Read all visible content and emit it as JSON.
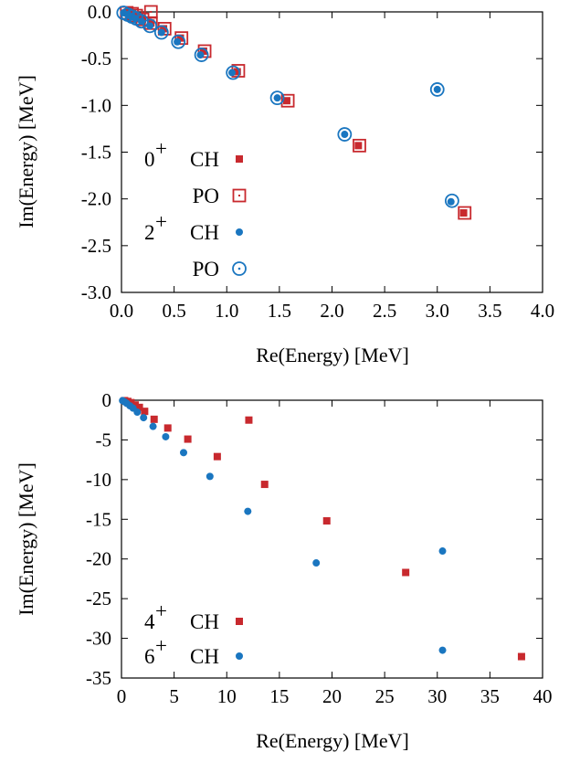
{
  "charts": [
    {
      "type": "scatter",
      "xlabel": "Re(Energy) [MeV]",
      "ylabel": "Im(Energy) [MeV]",
      "xlim": [
        0.0,
        4.0
      ],
      "ylim": [
        -3.0,
        0.0
      ],
      "xticks": [
        "0.0",
        "0.5",
        "1.0",
        "1.5",
        "2.0",
        "2.5",
        "3.0",
        "3.5",
        "4.0"
      ],
      "xtick_values": [
        0.0,
        0.5,
        1.0,
        1.5,
        2.0,
        2.5,
        3.0,
        3.5,
        4.0
      ],
      "yticks": [
        "0.0",
        "-0.5",
        "-1.0",
        "-1.5",
        "-2.0",
        "-2.5",
        "-3.0"
      ],
      "ytick_values": [
        0.0,
        -0.5,
        -1.0,
        -1.5,
        -2.0,
        -2.5,
        -3.0
      ],
      "legend_position": "bottom-left",
      "series": [
        {
          "legend_prefix": "0",
          "legend_sup": "+",
          "legend_label": "CH",
          "marker": "filled-square",
          "color": "#c8292e",
          "points": [
            [
              0.06,
              -0.01
            ],
            [
              0.1,
              -0.02
            ],
            [
              0.15,
              -0.05
            ],
            [
              0.2,
              -0.08
            ],
            [
              0.28,
              -0.12
            ],
            [
              0.4,
              -0.18
            ],
            [
              0.56,
              -0.28
            ],
            [
              0.78,
              -0.42
            ],
            [
              1.1,
              -0.64
            ],
            [
              1.57,
              -0.95
            ],
            [
              2.25,
              -1.43
            ],
            [
              3.25,
              -2.15
            ]
          ]
        },
        {
          "legend_prefix": "",
          "legend_sup": "",
          "legend_label": "PO",
          "marker": "open-square-dot",
          "color": "#c8292e",
          "points": [
            [
              0.05,
              -0.01
            ],
            [
              0.1,
              -0.02
            ],
            [
              0.14,
              -0.04
            ],
            [
              0.28,
              0.0
            ],
            [
              0.2,
              -0.08
            ],
            [
              0.28,
              -0.12
            ],
            [
              0.41,
              -0.18
            ],
            [
              0.57,
              -0.28
            ],
            [
              0.79,
              -0.42
            ],
            [
              1.11,
              -0.63
            ],
            [
              1.58,
              -0.95
            ],
            [
              2.26,
              -1.43
            ],
            [
              3.26,
              -2.15
            ]
          ]
        },
        {
          "legend_prefix": "2",
          "legend_sup": "+",
          "legend_label": "CH",
          "marker": "filled-circle",
          "color": "#1a76c0",
          "points": [
            [
              0.02,
              -0.01
            ],
            [
              0.06,
              -0.03
            ],
            [
              0.09,
              -0.05
            ],
            [
              0.13,
              -0.07
            ],
            [
              0.19,
              -0.1
            ],
            [
              0.27,
              -0.15
            ],
            [
              0.38,
              -0.22
            ],
            [
              0.53,
              -0.32
            ],
            [
              0.75,
              -0.46
            ],
            [
              1.05,
              -0.65
            ],
            [
              1.48,
              -0.92
            ],
            [
              2.12,
              -1.31
            ],
            [
              3.0,
              -0.83
            ],
            [
              3.13,
              -2.03
            ]
          ]
        },
        {
          "legend_prefix": "",
          "legend_sup": "",
          "legend_label": "PO",
          "marker": "open-circle-dot",
          "color": "#1a76c0",
          "points": [
            [
              0.02,
              -0.01
            ],
            [
              0.06,
              -0.03
            ],
            [
              0.1,
              -0.05
            ],
            [
              0.14,
              -0.07
            ],
            [
              0.19,
              -0.1
            ],
            [
              0.27,
              -0.15
            ],
            [
              0.38,
              -0.22
            ],
            [
              0.54,
              -0.32
            ],
            [
              0.76,
              -0.46
            ],
            [
              1.06,
              -0.65
            ],
            [
              1.48,
              -0.92
            ],
            [
              2.12,
              -1.31
            ],
            [
              3.0,
              -0.83
            ],
            [
              3.14,
              -2.02
            ]
          ]
        }
      ]
    },
    {
      "type": "scatter",
      "xlabel": "Re(Energy) [MeV]",
      "ylabel": "Im(Energy) [MeV]",
      "xlim": [
        0,
        40
      ],
      "ylim": [
        -35,
        0
      ],
      "xticks": [
        "0",
        "5",
        "10",
        "15",
        "20",
        "25",
        "30",
        "35",
        "40"
      ],
      "xtick_values": [
        0,
        5,
        10,
        15,
        20,
        25,
        30,
        35,
        40
      ],
      "yticks": [
        "0",
        "-5",
        "-10",
        "-15",
        "-20",
        "-25",
        "-30",
        "-35"
      ],
      "ytick_values": [
        0,
        -5,
        -10,
        -15,
        -20,
        -25,
        -30,
        -35
      ],
      "legend_position": "bottom-left",
      "series": [
        {
          "legend_prefix": "4",
          "legend_sup": "+",
          "legend_label": "CH",
          "marker": "filled-square",
          "color": "#c8292e",
          "points": [
            [
              0.3,
              -0.05
            ],
            [
              0.6,
              -0.15
            ],
            [
              0.9,
              -0.3
            ],
            [
              1.3,
              -0.6
            ],
            [
              1.7,
              -0.9
            ],
            [
              2.2,
              -1.4
            ],
            [
              3.1,
              -2.4
            ],
            [
              4.4,
              -3.5
            ],
            [
              6.3,
              -4.9
            ],
            [
              9.1,
              -7.1
            ],
            [
              12.1,
              -2.5
            ],
            [
              13.6,
              -10.6
            ],
            [
              19.5,
              -15.2
            ],
            [
              27.0,
              -21.7
            ],
            [
              38.0,
              -32.3
            ]
          ]
        },
        {
          "legend_prefix": "6",
          "legend_sup": "+",
          "legend_label": "CH",
          "marker": "filled-circle",
          "color": "#1a76c0",
          "points": [
            [
              0.1,
              -0.05
            ],
            [
              0.3,
              -0.2
            ],
            [
              0.5,
              -0.4
            ],
            [
              0.8,
              -0.7
            ],
            [
              1.1,
              -1.0
            ],
            [
              1.5,
              -1.5
            ],
            [
              2.1,
              -2.2
            ],
            [
              3.0,
              -3.3
            ],
            [
              4.2,
              -4.6
            ],
            [
              5.9,
              -6.6
            ],
            [
              8.4,
              -9.6
            ],
            [
              12.0,
              -14.0
            ],
            [
              18.5,
              -20.5
            ],
            [
              30.5,
              -19.0
            ],
            [
              30.5,
              -31.5
            ]
          ]
        }
      ]
    }
  ]
}
